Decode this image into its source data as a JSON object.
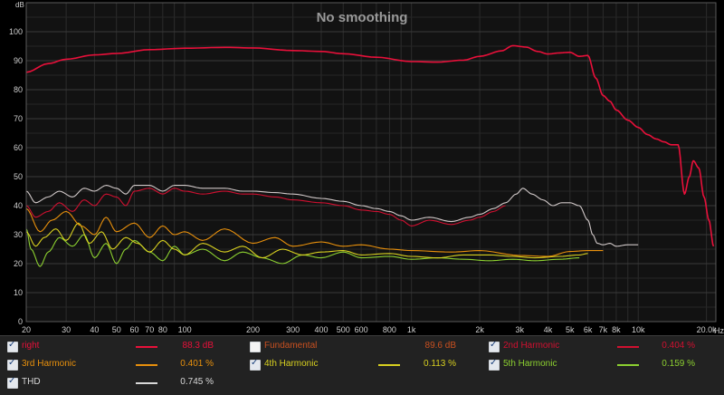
{
  "chart_data": {
    "type": "line",
    "title": "No smoothing",
    "ylabel": "dB",
    "xlabel": "",
    "x_scale": "log",
    "xlim": [
      20,
      22000
    ],
    "ylim": [
      0,
      110
    ],
    "grid": true,
    "y_ticks": [
      0,
      10,
      20,
      30,
      40,
      50,
      60,
      70,
      80,
      90,
      100
    ],
    "x_ticks": [
      {
        "v": 20,
        "label": "20"
      },
      {
        "v": 30,
        "label": "30"
      },
      {
        "v": 40,
        "label": "40"
      },
      {
        "v": 50,
        "label": "50"
      },
      {
        "v": 60,
        "label": "60"
      },
      {
        "v": 70,
        "label": "70"
      },
      {
        "v": 80,
        "label": "80"
      },
      {
        "v": 100,
        "label": "100"
      },
      {
        "v": 200,
        "label": "200"
      },
      {
        "v": 300,
        "label": "300"
      },
      {
        "v": 400,
        "label": "400"
      },
      {
        "v": 500,
        "label": "500"
      },
      {
        "v": 600,
        "label": "600"
      },
      {
        "v": 800,
        "label": "800"
      },
      {
        "v": 1000,
        "label": "1k"
      },
      {
        "v": 2000,
        "label": "2k"
      },
      {
        "v": 3000,
        "label": "3k"
      },
      {
        "v": 4000,
        "label": "4k"
      },
      {
        "v": 5000,
        "label": "5k"
      },
      {
        "v": 6000,
        "label": "6k"
      },
      {
        "v": 7000,
        "label": "7k"
      },
      {
        "v": 8000,
        "label": "8k"
      },
      {
        "v": 10000,
        "label": "10k"
      },
      {
        "v": 20000,
        "label": "20.0k"
      }
    ],
    "x_unit": "Hz",
    "series": [
      {
        "name": "right",
        "color": "#e8103a",
        "width": 1.6,
        "x": [
          20,
          25,
          30,
          40,
          50,
          70,
          100,
          150,
          200,
          300,
          400,
          500,
          700,
          1000,
          1300,
          1700,
          2000,
          2500,
          2800,
          3200,
          3600,
          4000,
          4500,
          5000,
          5500,
          6000,
          6500,
          7000,
          7500,
          8000,
          9000,
          10000,
          11000,
          12000,
          13000,
          14000,
          15000,
          16000,
          16800,
          17500,
          18500,
          19500,
          20500,
          21500
        ],
        "y": [
          86,
          89,
          90.5,
          92,
          92.5,
          93.8,
          94.3,
          94.6,
          94.4,
          93.5,
          93.2,
          92.4,
          91.2,
          89.7,
          89.5,
          90.2,
          91.5,
          93.4,
          95.2,
          94.7,
          93.2,
          92.3,
          92.7,
          92.9,
          91.5,
          91.8,
          84,
          78,
          76,
          73,
          69.5,
          67,
          64.5,
          63,
          62,
          61,
          61,
          44,
          50,
          55.5,
          53,
          43,
          35,
          26
        ]
      },
      {
        "name": "Fundamental",
        "color": "#ff4010",
        "visible": false,
        "x": [],
        "y": []
      },
      {
        "name": "2nd Harmonic",
        "color": "#d01030",
        "width": 1.1,
        "x": [
          20,
          22,
          25,
          28,
          32,
          36,
          40,
          45,
          50,
          55,
          60,
          70,
          80,
          90,
          100,
          120,
          150,
          180,
          200,
          250,
          300,
          400,
          500,
          600,
          700,
          800,
          900,
          1000,
          1200,
          1500,
          1800,
          2000,
          2300,
          2600
        ],
        "y": [
          40,
          36,
          38,
          41,
          38,
          42,
          40,
          44,
          43,
          40,
          45,
          46,
          44,
          46,
          45,
          44,
          45,
          44,
          44,
          43,
          42,
          41,
          40,
          38.5,
          38,
          37,
          35,
          33,
          35,
          33.5,
          35,
          36,
          38,
          40
        ]
      },
      {
        "name": "3rd Harmonic",
        "color": "#e8900c",
        "width": 1.1,
        "x": [
          20,
          23,
          26,
          30,
          35,
          40,
          45,
          50,
          60,
          70,
          80,
          90,
          100,
          120,
          150,
          200,
          250,
          300,
          400,
          500,
          600,
          800,
          1000,
          1500,
          2000,
          3000,
          4000,
          5000,
          6000,
          7000
        ],
        "y": [
          39,
          31,
          35,
          38,
          33,
          30,
          36,
          31,
          34,
          29,
          33,
          30,
          31,
          28,
          32,
          27,
          29,
          26,
          27.5,
          26,
          26.5,
          25,
          24.5,
          24,
          24.5,
          22.8,
          22.5,
          24.2,
          24.5,
          24.5
        ]
      },
      {
        "name": "4th Harmonic",
        "color": "#d8d020",
        "width": 1.1,
        "x": [
          20,
          22,
          24,
          27,
          30,
          34,
          38,
          43,
          48,
          55,
          62,
          70,
          80,
          90,
          100,
          120,
          150,
          180,
          220,
          270,
          330,
          400,
          500,
          600,
          800,
          1000,
          1300,
          1700,
          2200,
          2800,
          3500,
          4500,
          5500,
          6000
        ],
        "y": [
          31,
          26,
          29,
          32,
          28,
          34,
          27,
          31,
          25,
          29,
          27,
          24,
          28,
          25,
          23,
          27,
          24,
          26,
          22,
          25,
          23,
          24,
          24.5,
          23,
          23.5,
          22.5,
          22,
          23,
          23,
          22.5,
          22,
          22.5,
          23,
          23.5
        ]
      },
      {
        "name": "5th Harmonic",
        "color": "#8cd030",
        "width": 1.1,
        "x": [
          20,
          21,
          23,
          25,
          28,
          32,
          36,
          40,
          45,
          50,
          55,
          60,
          70,
          80,
          90,
          100,
          120,
          150,
          180,
          220,
          270,
          330,
          400,
          500,
          600,
          800,
          1000,
          1300,
          1700,
          2200,
          2800,
          3500,
          4500,
          5500
        ],
        "y": [
          32,
          25,
          19,
          24,
          29,
          26,
          30,
          22,
          27,
          20,
          25,
          28,
          24,
          21,
          26,
          23,
          25,
          21,
          24,
          22,
          20,
          23,
          22,
          24,
          22,
          22.5,
          21.5,
          22,
          21.5,
          21,
          21.5,
          21,
          21.5,
          22
        ]
      },
      {
        "name": "THD",
        "color": "#d0c8c8",
        "width": 1.1,
        "x": [
          20,
          22,
          25,
          28,
          32,
          36,
          40,
          45,
          50,
          55,
          60,
          70,
          80,
          90,
          100,
          120,
          150,
          180,
          200,
          250,
          300,
          400,
          500,
          600,
          700,
          800,
          900,
          1000,
          1200,
          1500,
          1800,
          2000,
          2300,
          2600,
          2900,
          3100,
          3400,
          3800,
          4200,
          4600,
          5000,
          5500,
          6000,
          6300,
          6600,
          7000,
          7500,
          8000,
          9000,
          10000
        ],
        "y": [
          45,
          41,
          43,
          45,
          43,
          46,
          45,
          47,
          46,
          44,
          47,
          47,
          45,
          47,
          47,
          46,
          46,
          45,
          45,
          44.5,
          44,
          42.5,
          41.5,
          40,
          39,
          38,
          36.5,
          35,
          36,
          34.5,
          36,
          37,
          39,
          41,
          44,
          46,
          44,
          42,
          40,
          41,
          41,
          40,
          35,
          30,
          27,
          26.5,
          27,
          26,
          26.5,
          26.5
        ]
      }
    ]
  },
  "legend": {
    "items": [
      {
        "label": "right",
        "value": "88.3 dB",
        "checked": true,
        "color": "#e8103a"
      },
      {
        "label": "Fundamental",
        "value": "89.6 dB",
        "checked": false,
        "color": "#c85020"
      },
      {
        "label": "2nd Harmonic",
        "value": "0.404 %",
        "checked": true,
        "color": "#d01030"
      },
      {
        "label": "3rd Harmonic",
        "value": "0.401 %",
        "checked": true,
        "color": "#e8900c"
      },
      {
        "label": "4th Harmonic",
        "value": "0.113 %",
        "checked": true,
        "color": "#d8d020"
      },
      {
        "label": "5th Harmonic",
        "value": "0.159 %",
        "checked": true,
        "color": "#8cd030"
      },
      {
        "label": "THD",
        "value": "0.745 %",
        "checked": true,
        "color": "#d8d8d8"
      }
    ]
  }
}
